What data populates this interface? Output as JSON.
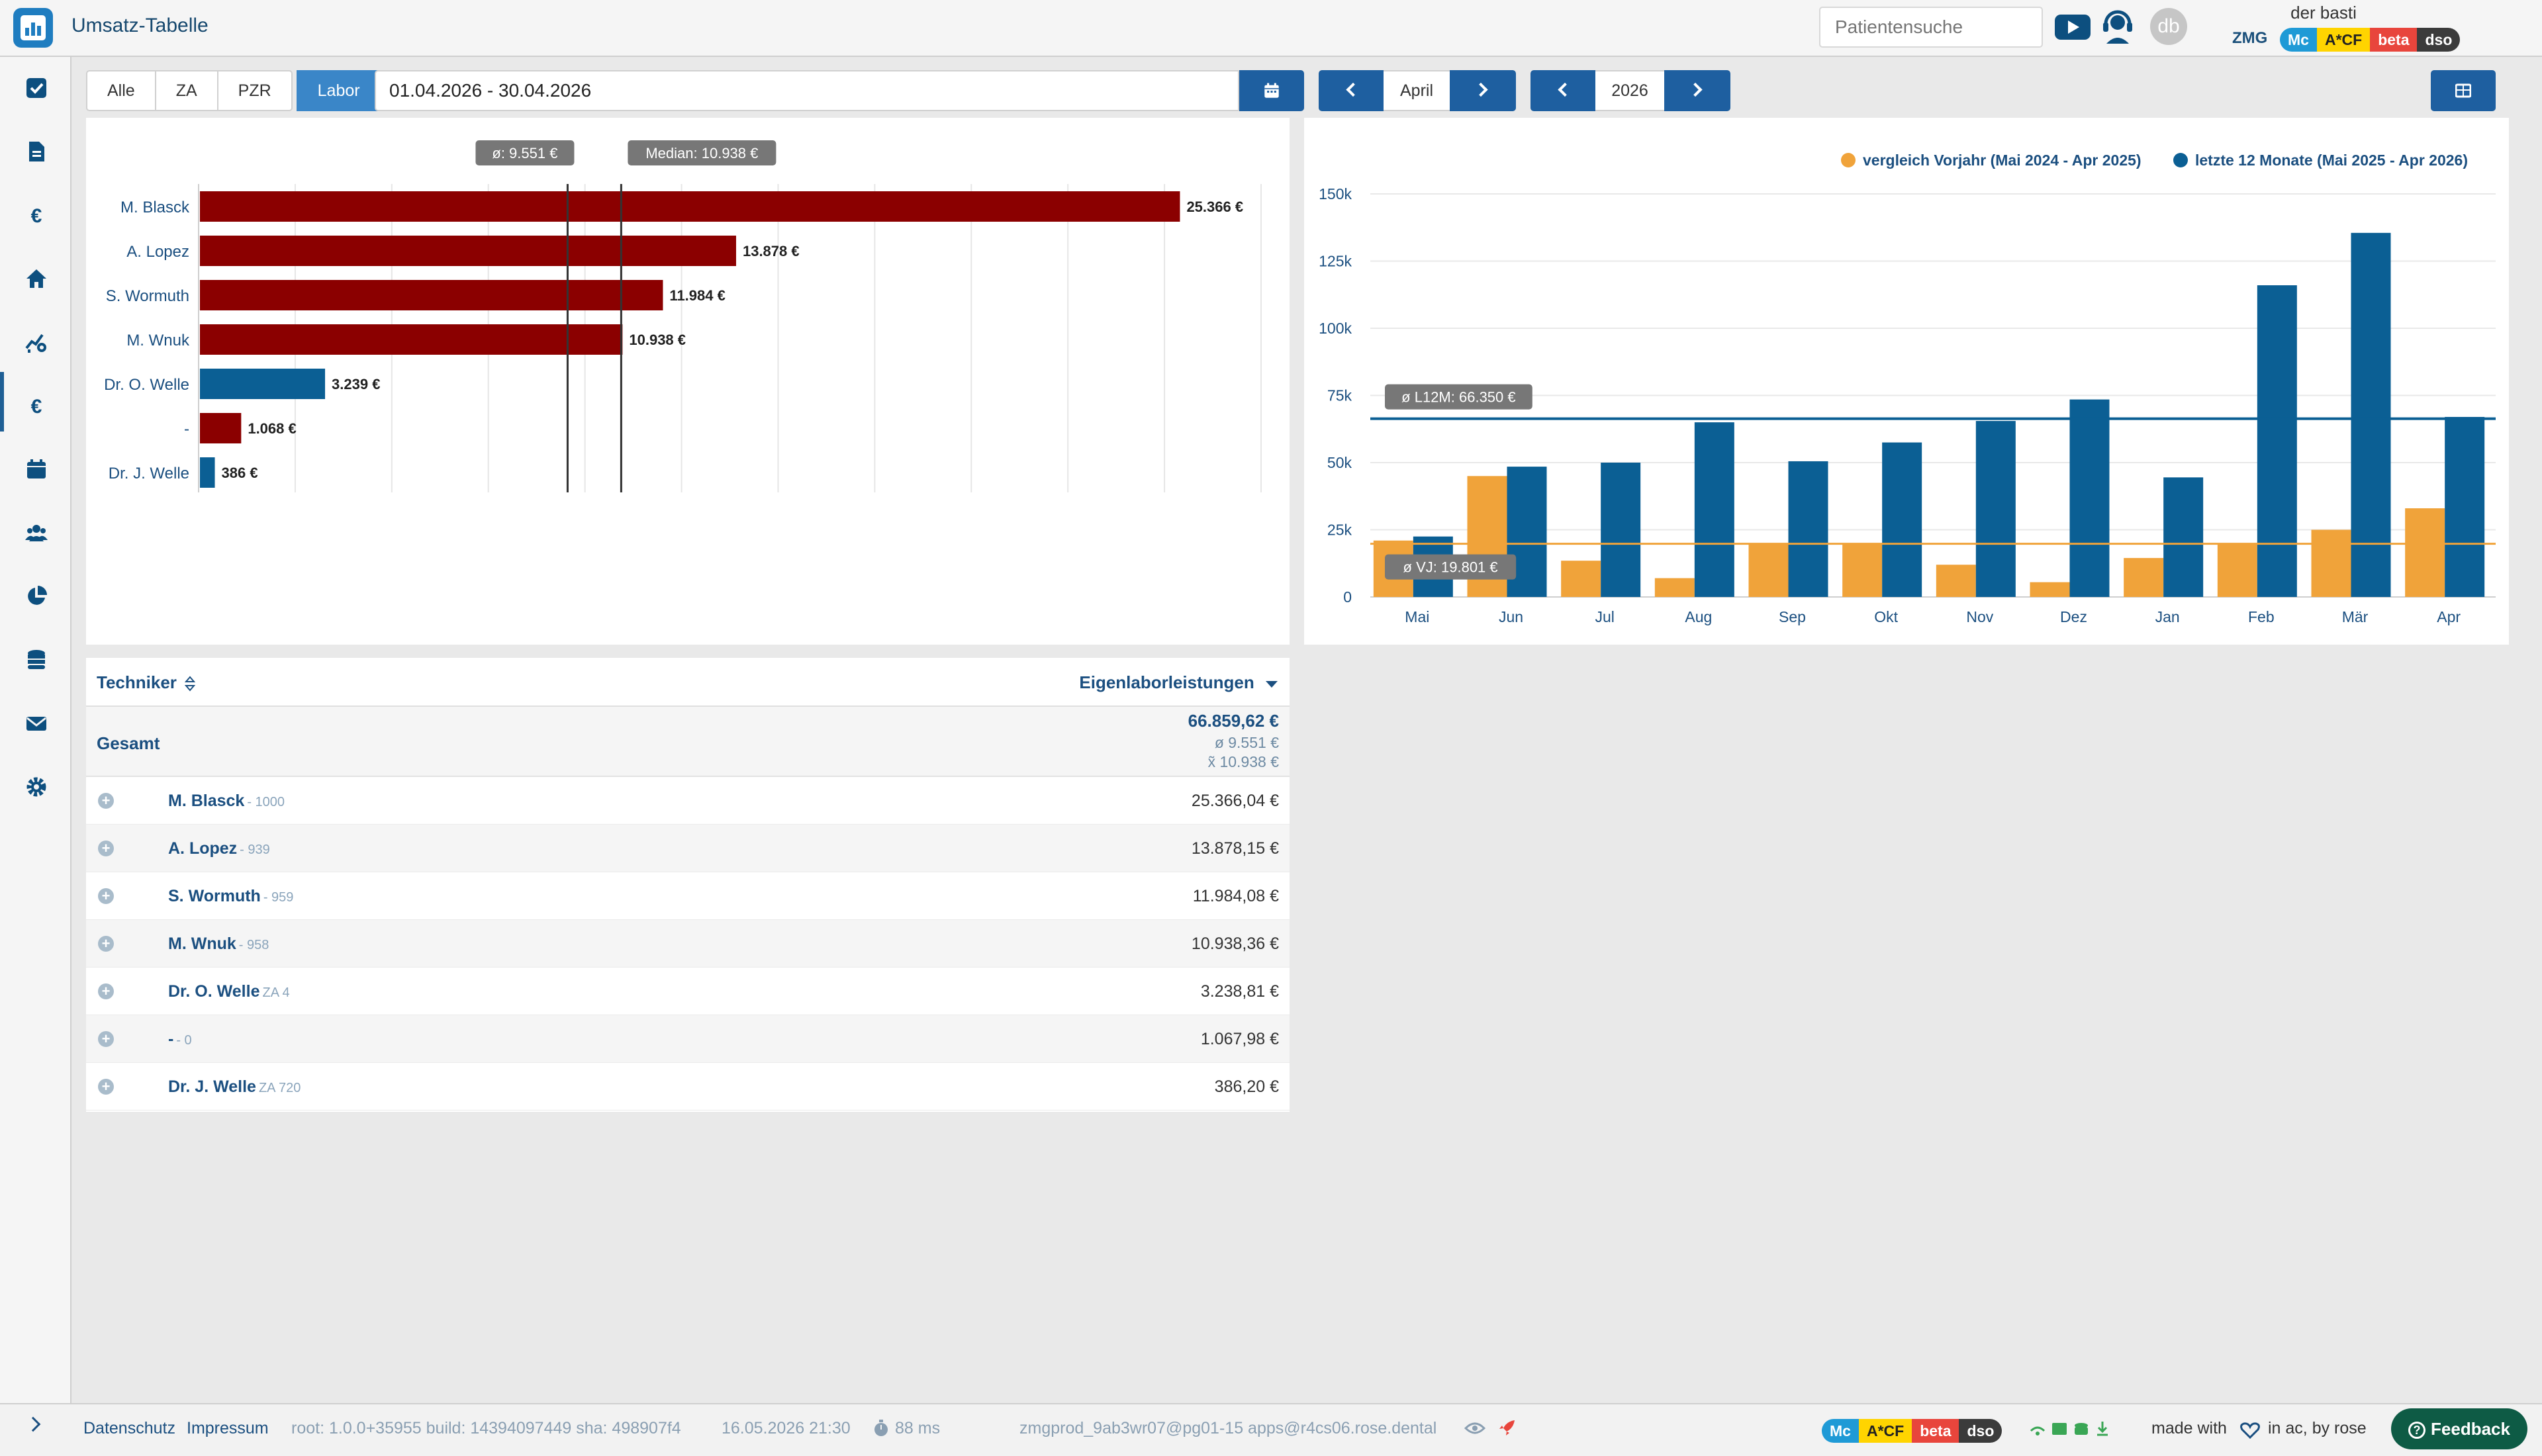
{
  "app": {
    "title": "Umsatz-Tabelle"
  },
  "header": {
    "search_placeholder": "Patientensuche",
    "avatar_initials": "db",
    "user_name": "der basti",
    "org": "ZMG",
    "tags": [
      "Mc",
      "A*CF",
      "beta",
      "dso"
    ]
  },
  "filters": {
    "tabs": [
      "Alle",
      "ZA",
      "PZR",
      "Labor"
    ],
    "active_tab": "Labor",
    "date_range": "01.04.2026 - 30.04.2026",
    "month": "April",
    "year": "2026"
  },
  "chart_data": [
    {
      "type": "bar",
      "orientation": "horizontal",
      "categories": [
        "M. Blasck",
        "A. Lopez",
        "S. Wormuth",
        "M. Wnuk",
        "Dr. O. Welle",
        "-",
        "Dr. J. Welle"
      ],
      "values": [
        25366,
        13878,
        11984,
        10938,
        3239,
        1068,
        386
      ],
      "value_labels": [
        "25.366 €",
        "13.878 €",
        "11.984 €",
        "10.938 €",
        "3.239 €",
        "1.068 €",
        "386 €"
      ],
      "bar_colors": [
        "#8b0000",
        "#8b0000",
        "#8b0000",
        "#8b0000",
        "#0b5f94",
        "#8b0000",
        "#0b5f94"
      ],
      "xlim": [
        0,
        27500
      ],
      "grid": true,
      "annotations": [
        {
          "label": "ø: 9.551 €",
          "value": 9551
        },
        {
          "label": "Median: 10.938 €",
          "value": 10938
        }
      ]
    },
    {
      "type": "bar",
      "categories": [
        "Mai",
        "Jun",
        "Jul",
        "Aug",
        "Sep",
        "Okt",
        "Nov",
        "Dez",
        "Jan",
        "Feb",
        "Mär",
        "Apr"
      ],
      "series": [
        {
          "name": "vergleich Vorjahr (Mai 2024 - Apr 2025)",
          "color": "#f0a33a",
          "values": [
            21000,
            45000,
            13500,
            7000,
            20000,
            20000,
            12000,
            5500,
            14500,
            19500,
            25000,
            33000
          ]
        },
        {
          "name": "letzte 12 Monate (Mai 2025 - Apr 2026)",
          "color": "#0b5f94",
          "values": [
            22500,
            48500,
            50000,
            65000,
            50500,
            57500,
            65500,
            73500,
            44500,
            116000,
            135500,
            67000
          ]
        }
      ],
      "ylim": [
        0,
        150000
      ],
      "yticks": [
        "0",
        "25k",
        "50k",
        "75k",
        "100k",
        "125k",
        "150k"
      ],
      "grid": true,
      "legend_position": "top-right",
      "reference_lines": [
        {
          "label": "ø L12M: 66.350 €",
          "value": 66350,
          "color": "#0b5f94"
        },
        {
          "label": "ø VJ: 19.801 €",
          "value": 19801,
          "color": "#f0a33a"
        }
      ]
    }
  ],
  "table": {
    "col_left": "Techniker",
    "col_right": "Eigenlaborleistungen",
    "total": {
      "label": "Gesamt",
      "sum": "66.859,62 €",
      "avg": "ø 9.551 €",
      "median": "x̃ 10.938 €"
    },
    "rows": [
      {
        "name": "M. Blasck",
        "sub": "- 1000",
        "value": "25.366,04 €"
      },
      {
        "name": "A. Lopez",
        "sub": "- 939",
        "value": "13.878,15 €"
      },
      {
        "name": "S. Wormuth",
        "sub": "- 959",
        "value": "11.984,08 €"
      },
      {
        "name": "M. Wnuk",
        "sub": "- 958",
        "value": "10.938,36 €"
      },
      {
        "name": "Dr. O. Welle",
        "sub": "ZA 4",
        "value": "3.238,81 €"
      },
      {
        "name": "-",
        "sub": "- 0",
        "value": "1.067,98 €"
      },
      {
        "name": "Dr. J. Welle",
        "sub": "ZA 720",
        "value": "386,20 €"
      }
    ]
  },
  "footer": {
    "datenschutz": "Datenschutz",
    "impressum": "Impressum",
    "version": "root: 1.0.0+35955 build: 14394097449 sha: 498907f4",
    "timestamp": "16.05.2026 21:30",
    "latency": "88 ms",
    "connection": "zmgprod_9ab3wr07@pg01-15 apps@r4cs06.rose.dental",
    "made_with": "made with",
    "made_by": "in ac, by rose",
    "feedback": "Feedback"
  }
}
